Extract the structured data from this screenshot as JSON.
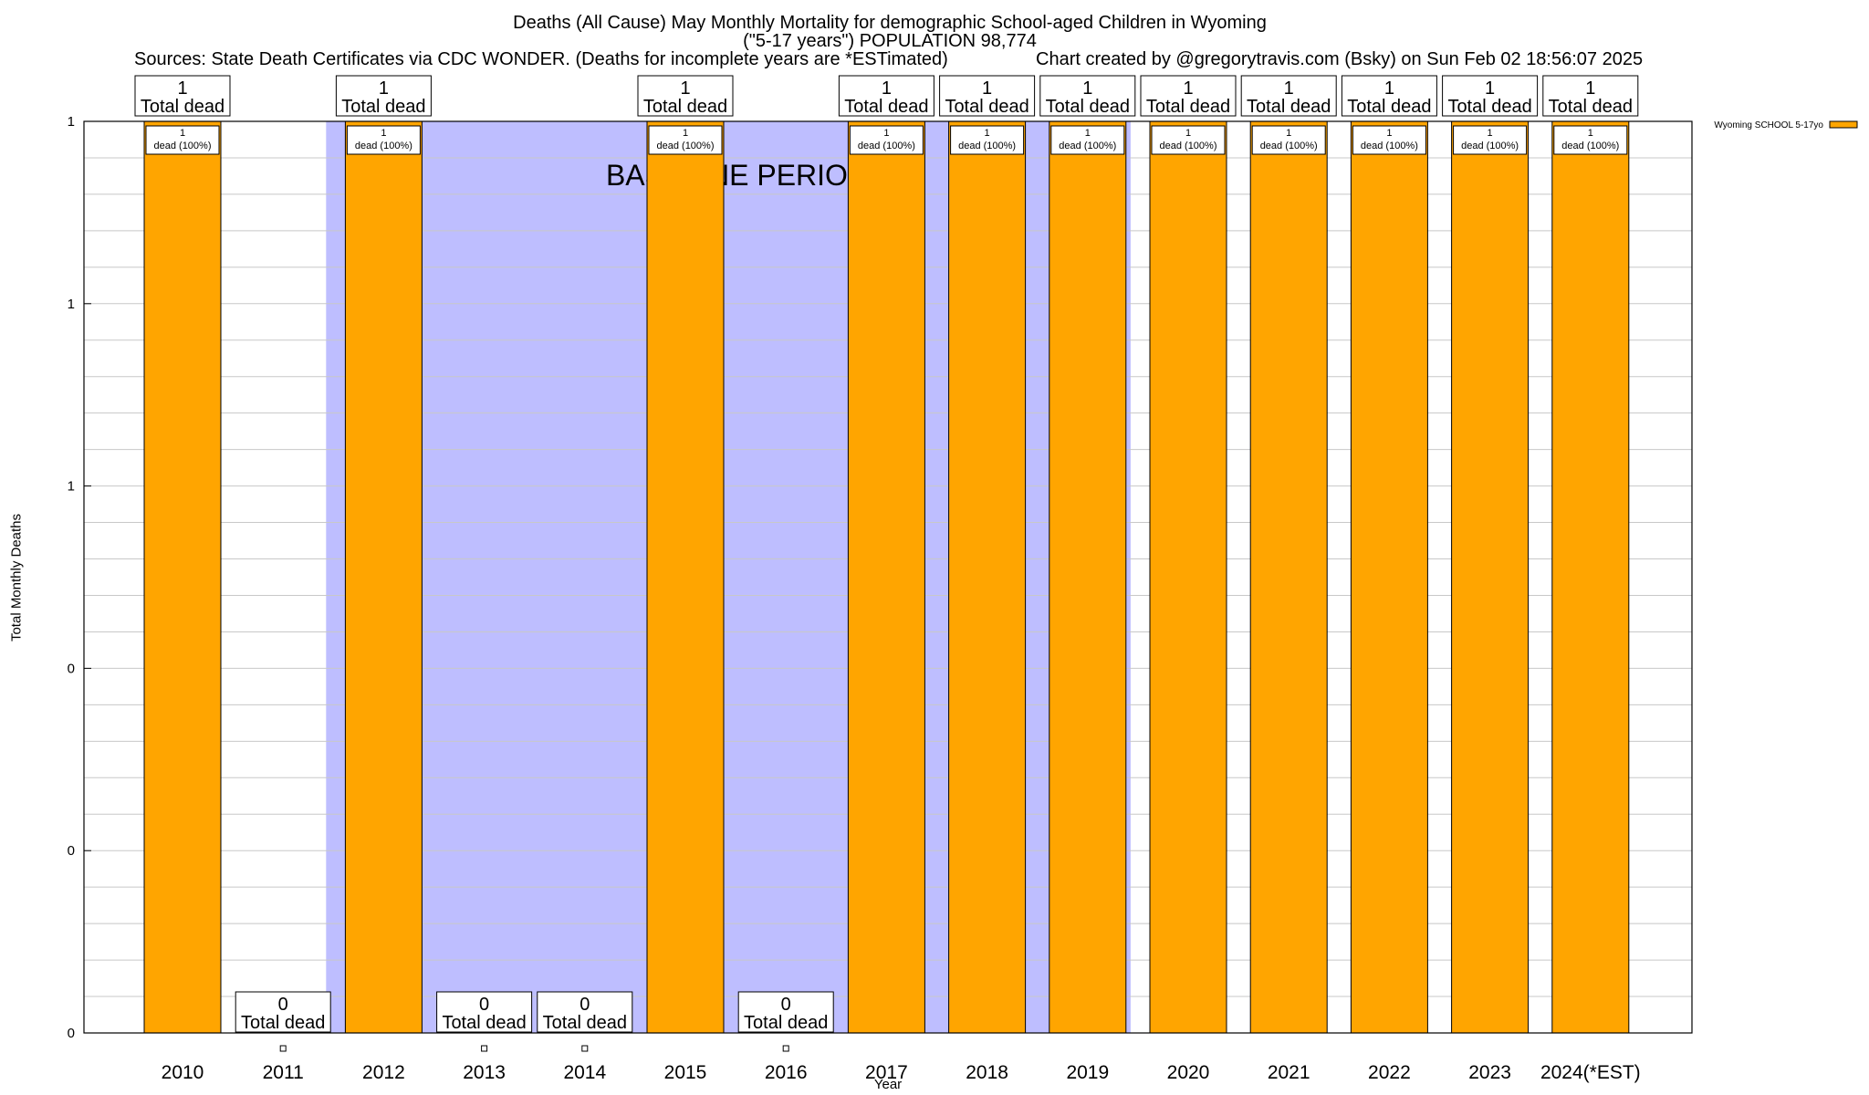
{
  "header": {
    "title_line1": "Deaths (All Cause) May Monthly Mortality for demographic School-aged Children in Wyoming",
    "title_line2": "(\"5-17 years\") POPULATION 98,774",
    "sources": "Sources: State Death Certificates via CDC WONDER. (Deaths for incomplete years are *ESTimated)",
    "credit": "Chart created by @gregorytravis.com (Bsky) on Sun Feb 02 18:56:07 2025"
  },
  "chart_data": {
    "type": "bar",
    "title": "Deaths (All Cause) May Monthly Mortality for demographic School-aged Children in Wyoming",
    "xlabel": "Year",
    "ylabel": "Total Monthly Deaths",
    "ylim": [
      0,
      1
    ],
    "y_tick_labels": [
      "0",
      "0",
      "0",
      "1",
      "1",
      "1"
    ],
    "grid": true,
    "legend": {
      "position": "top-right",
      "entries": [
        {
          "label": "Wyoming SCHOOL 5-17yo",
          "color": "#FFA500"
        }
      ]
    },
    "categories": [
      "2010",
      "2011",
      "2012",
      "2013",
      "2014",
      "2015",
      "2016",
      "2017",
      "2018",
      "2019",
      "2020",
      "2021",
      "2022",
      "2023",
      "2024(*EST)"
    ],
    "series": [
      {
        "name": "Wyoming SCHOOL 5-17yo",
        "values": [
          1,
          0,
          1,
          0,
          0,
          1,
          0,
          1,
          1,
          1,
          1,
          1,
          1,
          1,
          1
        ]
      }
    ],
    "total_label_suffix": "Total dead",
    "bar_labels": [
      "1\ndead (100%)",
      "",
      "1\ndead (100%)",
      "",
      "",
      "1\ndead (100%)",
      "",
      "1\ndead (100%)",
      "1\ndead (100%)",
      "1\ndead (100%)",
      "1\ndead (100%)",
      "1\ndead (100%)",
      "1\ndead (100%)",
      "1\ndead (100%)",
      "1\ndead (100%)"
    ],
    "annotations": [
      {
        "text": "BASELINE PERIOD"
      }
    ],
    "baseline_period": {
      "from": "2012",
      "to": "2019"
    },
    "colors": {
      "bar": "#FFA500",
      "baseline_shade": "#BEBEFF",
      "grid": "#C8C8C8"
    }
  }
}
